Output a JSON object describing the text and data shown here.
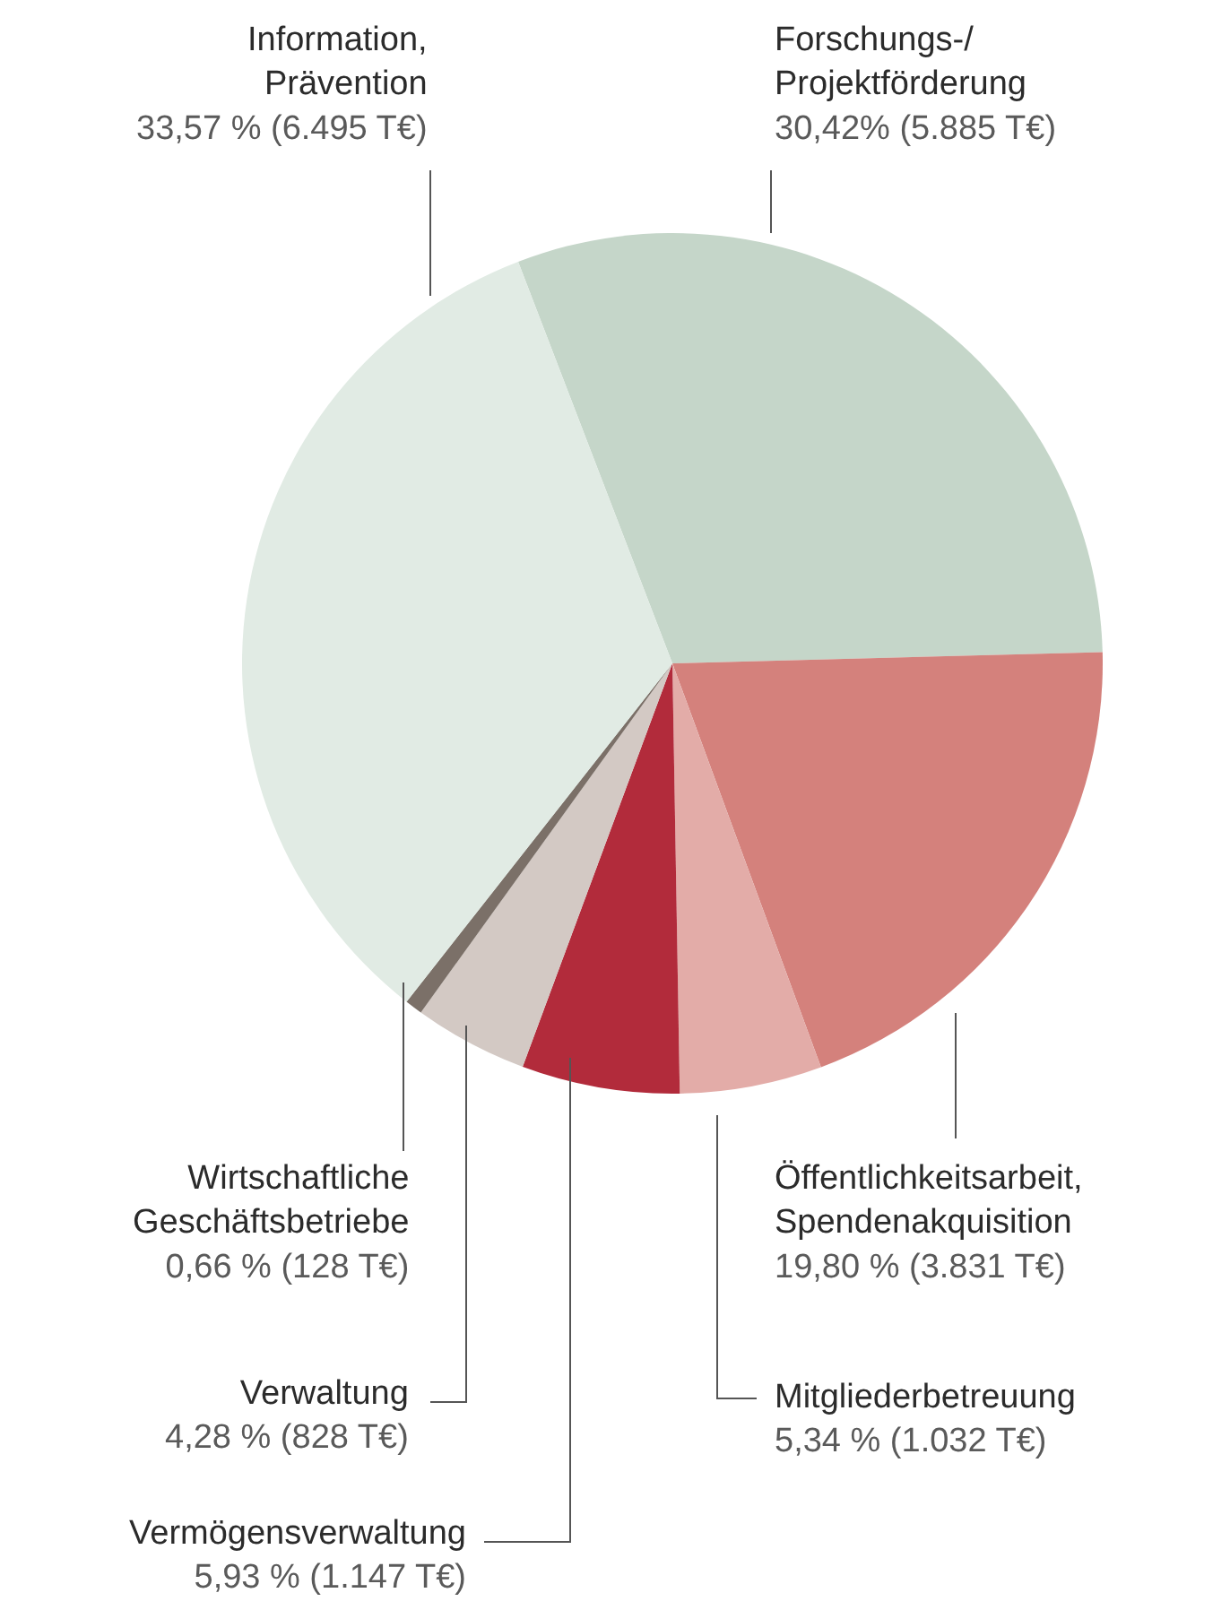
{
  "chart_data": {
    "type": "pie",
    "categories": [
      "Forschungs-/\nProjektförderung",
      "Öffentlichkeitsarbeit,\nSpendenakquisition",
      "Mitgliederbetreuung",
      "Vermögensverwaltung",
      "Verwaltung",
      "Wirtschaftliche\nGeschäftsbetriebe",
      "Information,\nPrävention"
    ],
    "values": [
      30.42,
      19.8,
      5.34,
      5.93,
      4.28,
      0.66,
      33.57
    ],
    "value_labels": [
      "30,42% (5.885 T€)",
      "19,80 % (3.831 T€)",
      "5,34 % (1.032 T€)",
      "5,93 % (1.147 T€)",
      "4,28 % (828 T€)",
      "0,66 % (128 T€)",
      "33,57 % (6.495 T€)"
    ],
    "colors": [
      "#c5d6c9",
      "#d4817c",
      "#e3aca8",
      "#b22b3b",
      "#d3c9c4",
      "#7b7068",
      "#e1ebe4"
    ],
    "legend": false
  }
}
